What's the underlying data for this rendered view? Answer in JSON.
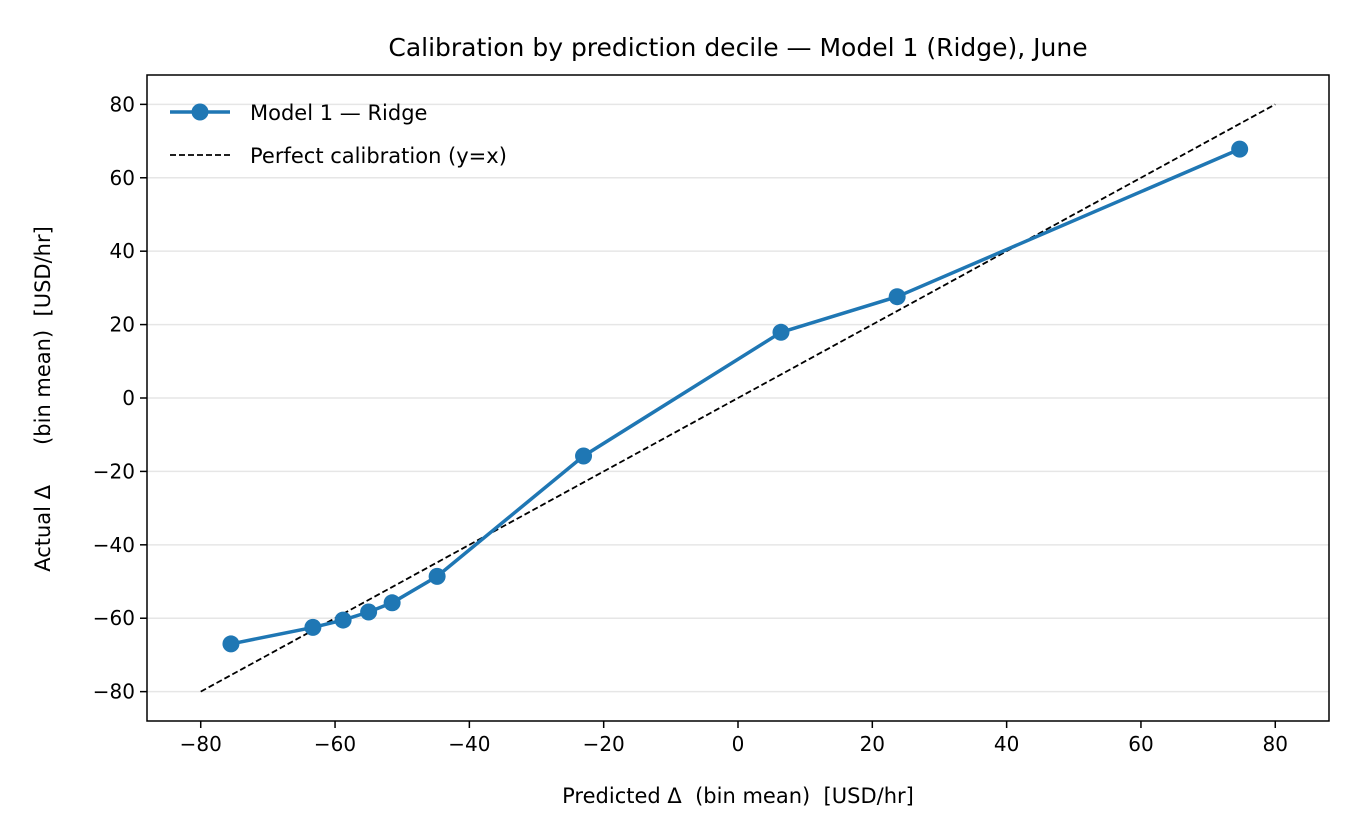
{
  "chart_data": {
    "type": "line",
    "title": "Calibration by prediction decile — Model 1 (Ridge), June",
    "xlabel": "Predicted Δ  (bin mean)  [USD/hr]",
    "ylabel": "Actual Δ      (bin mean)  [USD/hr]",
    "xlim": [
      -88,
      88
    ],
    "ylim": [
      -88,
      88
    ],
    "xticks": [
      -80,
      -60,
      -40,
      -20,
      0,
      20,
      40,
      60,
      80
    ],
    "yticks": [
      -80,
      -60,
      -40,
      -20,
      0,
      20,
      40,
      60,
      80
    ],
    "xtick_labels": [
      "−80",
      "−60",
      "−40",
      "−20",
      "0",
      "20",
      "40",
      "60",
      "80"
    ],
    "ytick_labels": [
      "−80",
      "−60",
      "−40",
      "−20",
      "0",
      "20",
      "40",
      "60",
      "80"
    ],
    "grid": "y-only",
    "legend_position": "top-left",
    "series": [
      {
        "name": "Model 1 — Ridge",
        "style": "line-marker",
        "color": "#1f77b4",
        "x": [
          -75.5,
          -63.3,
          -58.8,
          -55.0,
          -51.5,
          -44.8,
          -23.0,
          6.4,
          23.7,
          74.7
        ],
        "y": [
          -67.0,
          -62.5,
          -60.5,
          -58.3,
          -55.8,
          -48.6,
          -15.8,
          17.9,
          27.6,
          67.8
        ]
      },
      {
        "name": "Perfect calibration (y=x)",
        "style": "dashed",
        "color": "#000000",
        "x": [
          -80,
          80
        ],
        "y": [
          -80,
          80
        ]
      }
    ]
  }
}
